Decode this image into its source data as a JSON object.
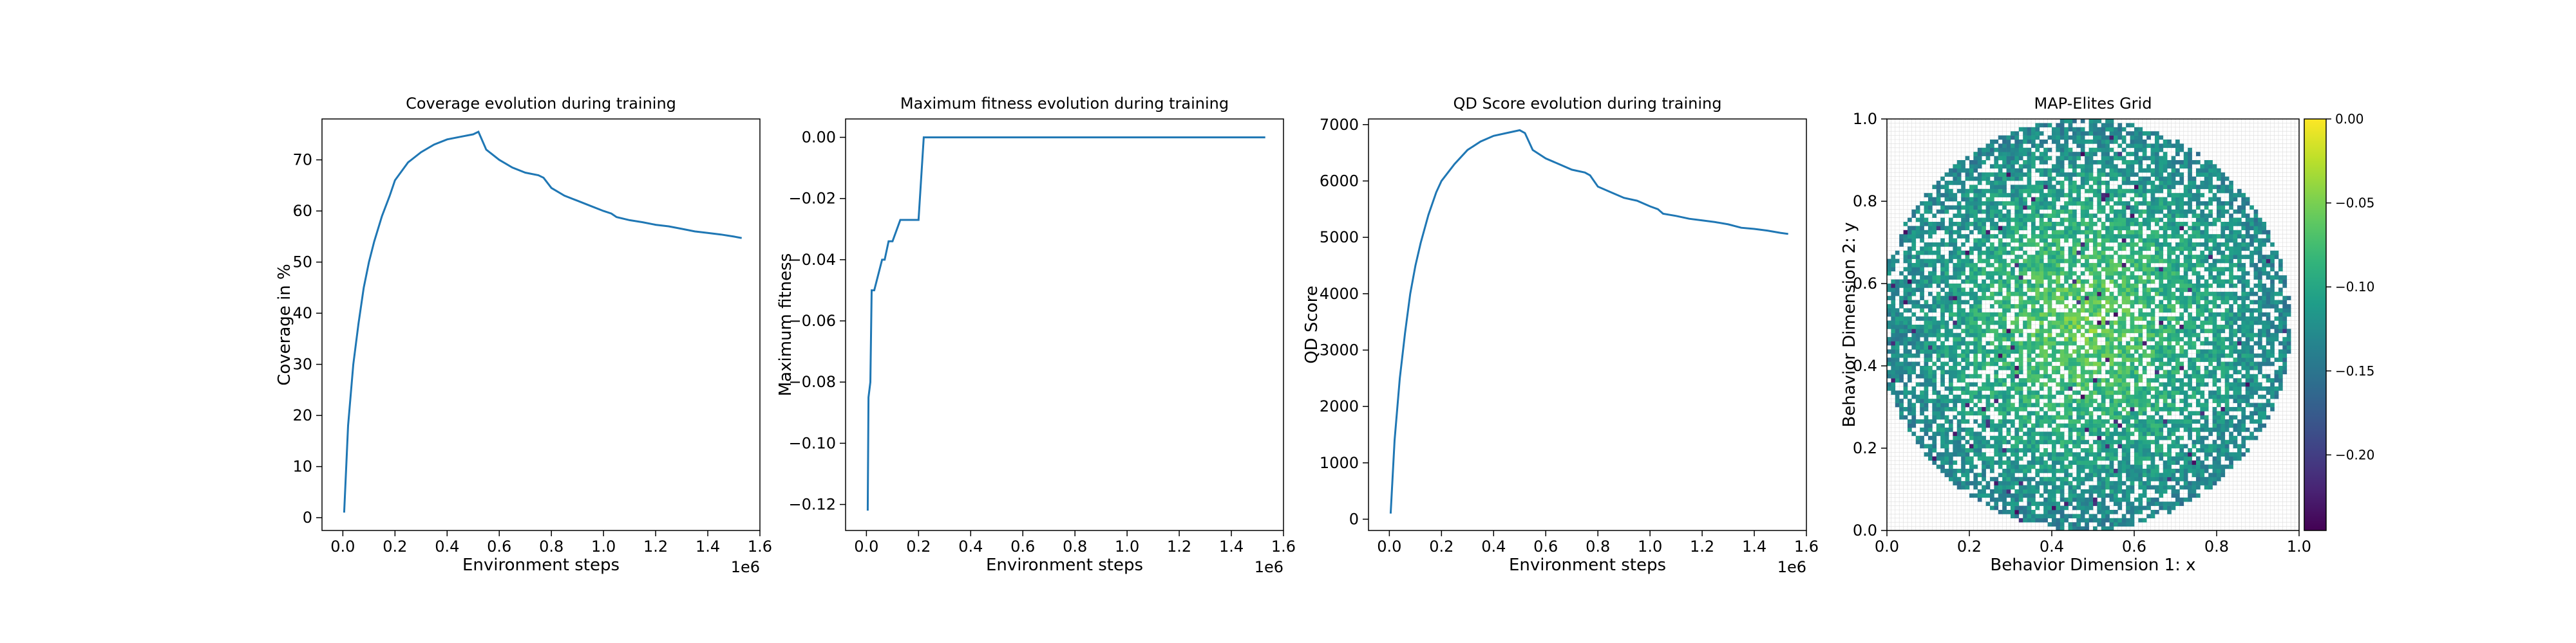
{
  "chart_data": [
    {
      "type": "line",
      "title": "Coverage evolution during training",
      "xlabel": "Environment steps",
      "ylabel": "Coverage in %",
      "x_offset_label": "1e6",
      "xlim": [
        -0.08,
        1.6
      ],
      "ylim": [
        -2.5,
        78
      ],
      "xticks": [
        0.0,
        0.2,
        0.4,
        0.6,
        0.8,
        1.0,
        1.2,
        1.4,
        1.6
      ],
      "xtick_labels": [
        "0.0",
        "0.2",
        "0.4",
        "0.6",
        "0.8",
        "1.0",
        "1.2",
        "1.4",
        "1.6"
      ],
      "yticks": [
        0,
        10,
        20,
        30,
        40,
        50,
        60,
        70
      ],
      "ytick_labels": [
        "0",
        "10",
        "20",
        "30",
        "40",
        "50",
        "60",
        "70"
      ],
      "series": [
        {
          "color": "#1f77b4",
          "x": [
            0.005,
            0.02,
            0.04,
            0.06,
            0.08,
            0.1,
            0.12,
            0.15,
            0.18,
            0.2,
            0.25,
            0.3,
            0.35,
            0.4,
            0.45,
            0.5,
            0.52,
            0.55,
            0.6,
            0.65,
            0.7,
            0.75,
            0.77,
            0.8,
            0.85,
            0.9,
            0.95,
            1.0,
            1.03,
            1.05,
            1.1,
            1.15,
            1.2,
            1.25,
            1.3,
            1.35,
            1.4,
            1.45,
            1.5,
            1.53
          ],
          "y": [
            1,
            18,
            30,
            38,
            45,
            50,
            54,
            59,
            63,
            66,
            69.5,
            71.5,
            73,
            74,
            74.5,
            75,
            75.5,
            72,
            70,
            68.5,
            67.5,
            67,
            66.5,
            64.5,
            63,
            62,
            61,
            60,
            59.5,
            58.8,
            58.2,
            57.8,
            57.3,
            57,
            56.5,
            56,
            55.7,
            55.4,
            55,
            54.7
          ]
        }
      ]
    },
    {
      "type": "line",
      "title": "Maximum fitness evolution during training",
      "xlabel": "Environment steps",
      "ylabel": "Maximum fitness",
      "x_offset_label": "1e6",
      "xlim": [
        -0.08,
        1.6
      ],
      "ylim": [
        -0.1285,
        0.006
      ],
      "xticks": [
        0.0,
        0.2,
        0.4,
        0.6,
        0.8,
        1.0,
        1.2,
        1.4,
        1.6
      ],
      "xtick_labels": [
        "0.0",
        "0.2",
        "0.4",
        "0.6",
        "0.8",
        "1.0",
        "1.2",
        "1.4",
        "1.6"
      ],
      "yticks": [
        -0.12,
        -0.1,
        -0.08,
        -0.06,
        -0.04,
        -0.02,
        0.0
      ],
      "ytick_labels": [
        "−0.12",
        "−0.10",
        "−0.08",
        "−0.06",
        "−0.04",
        "−0.02",
        "0.00"
      ],
      "series": [
        {
          "color": "#1f77b4",
          "x": [
            0.005,
            0.008,
            0.015,
            0.02,
            0.03,
            0.06,
            0.07,
            0.085,
            0.1,
            0.13,
            0.14,
            0.17,
            0.2,
            0.22,
            1.53
          ],
          "y": [
            -0.122,
            -0.085,
            -0.08,
            -0.05,
            -0.05,
            -0.04,
            -0.04,
            -0.034,
            -0.034,
            -0.027,
            -0.027,
            -0.027,
            -0.027,
            0.0,
            0.0
          ]
        }
      ]
    },
    {
      "type": "line",
      "title": "QD Score evolution during training",
      "xlabel": "Environment steps",
      "ylabel": "QD Score",
      "x_offset_label": "1e6",
      "xlim": [
        -0.08,
        1.6
      ],
      "ylim": [
        -200,
        7100
      ],
      "xticks": [
        0.0,
        0.2,
        0.4,
        0.6,
        0.8,
        1.0,
        1.2,
        1.4,
        1.6
      ],
      "xtick_labels": [
        "0.0",
        "0.2",
        "0.4",
        "0.6",
        "0.8",
        "1.0",
        "1.2",
        "1.4",
        "1.6"
      ],
      "yticks": [
        0,
        1000,
        2000,
        3000,
        4000,
        5000,
        6000,
        7000
      ],
      "ytick_labels": [
        "0",
        "1000",
        "2000",
        "3000",
        "4000",
        "5000",
        "6000",
        "7000"
      ],
      "series": [
        {
          "color": "#1f77b4",
          "x": [
            0.005,
            0.02,
            0.04,
            0.06,
            0.08,
            0.1,
            0.12,
            0.15,
            0.18,
            0.2,
            0.25,
            0.3,
            0.35,
            0.4,
            0.45,
            0.5,
            0.52,
            0.55,
            0.6,
            0.65,
            0.7,
            0.75,
            0.77,
            0.8,
            0.85,
            0.9,
            0.95,
            1.0,
            1.03,
            1.05,
            1.1,
            1.15,
            1.2,
            1.25,
            1.3,
            1.35,
            1.4,
            1.45,
            1.5,
            1.53
          ],
          "y": [
            100,
            1400,
            2500,
            3300,
            4000,
            4500,
            4900,
            5400,
            5800,
            6000,
            6300,
            6550,
            6700,
            6800,
            6850,
            6900,
            6850,
            6550,
            6400,
            6300,
            6200,
            6150,
            6100,
            5900,
            5800,
            5700,
            5650,
            5550,
            5500,
            5420,
            5380,
            5330,
            5300,
            5270,
            5230,
            5170,
            5150,
            5120,
            5080,
            5060
          ]
        }
      ]
    },
    {
      "type": "heatmap",
      "title": "MAP-Elites Grid",
      "xlabel": "Behavior Dimension 1: x",
      "ylabel": "Behavior Dimension 2: y",
      "xlim": [
        0,
        1
      ],
      "ylim": [
        0,
        1
      ],
      "xticks": [
        0.0,
        0.2,
        0.4,
        0.6,
        0.8,
        1.0
      ],
      "xtick_labels": [
        "0.0",
        "0.2",
        "0.4",
        "0.6",
        "0.8",
        "1.0"
      ],
      "yticks": [
        0.0,
        0.2,
        0.4,
        0.6,
        0.8,
        1.0
      ],
      "ytick_labels": [
        "0.0",
        "0.2",
        "0.4",
        "0.6",
        "0.8",
        "1.0"
      ],
      "grid": true,
      "grid_cells": 100,
      "filled_region": {
        "shape": "disk",
        "center": [
          0.48,
          0.5
        ],
        "radius": 0.5
      },
      "colormap": "viridis",
      "colorbar": {
        "vmin": -0.245,
        "vmax": 0.0,
        "ticks": [
          0.0,
          -0.05,
          -0.1,
          -0.15,
          -0.2
        ],
        "tick_labels": [
          "0.00",
          "−0.05",
          "−0.10",
          "−0.15",
          "−0.20"
        ]
      }
    }
  ]
}
